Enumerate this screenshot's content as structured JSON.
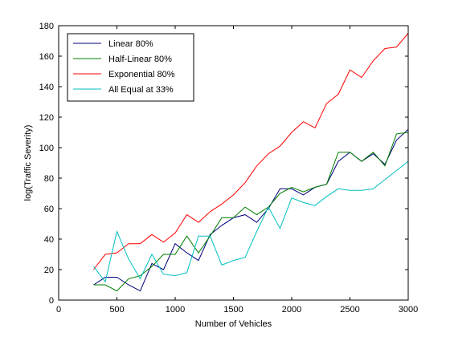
{
  "chart_data": {
    "type": "line",
    "xlabel": "Number of Vehicles",
    "ylabel": "log(Traffic Severity)",
    "xlim": [
      0,
      3000
    ],
    "ylim": [
      0,
      180
    ],
    "xticks": [
      0,
      500,
      1000,
      1500,
      2000,
      2500,
      3000
    ],
    "yticks": [
      0,
      20,
      40,
      60,
      80,
      100,
      120,
      140,
      160,
      180
    ],
    "grid": false,
    "legend_position": "top-left",
    "x": [
      300,
      400,
      500,
      600,
      700,
      800,
      900,
      1000,
      1100,
      1200,
      1300,
      1400,
      1500,
      1600,
      1700,
      1800,
      1900,
      2000,
      2100,
      2200,
      2300,
      2400,
      2500,
      2600,
      2700,
      2800,
      2900,
      3000
    ],
    "series": [
      {
        "name": "Linear 80%",
        "color": "#00007f",
        "values": [
          10,
          15,
          15,
          10,
          6,
          24,
          20,
          37,
          31,
          26,
          43,
          49,
          54,
          56,
          51,
          60,
          73,
          73,
          69,
          74,
          76,
          91,
          97,
          91,
          96,
          89,
          105,
          112
        ]
      },
      {
        "name": "Half-Linear 80%",
        "color": "#007f00",
        "values": [
          10,
          10,
          6,
          14,
          16,
          22,
          30,
          30,
          42,
          31,
          42,
          54,
          54,
          61,
          56,
          61,
          70,
          74,
          71,
          74,
          76,
          97,
          97,
          91,
          97,
          88,
          109,
          110
        ]
      },
      {
        "name": "Exponential 80%",
        "color": "#ff0000",
        "values": [
          20,
          30,
          31,
          37,
          37,
          43,
          38,
          44,
          56,
          51,
          58,
          63,
          69,
          77,
          88,
          96,
          101,
          110,
          117,
          113,
          129,
          135,
          151,
          146,
          157,
          165,
          166,
          175
        ]
      },
      {
        "name": "All Equal at 33%",
        "color": "#00bfbf",
        "values": [
          22,
          12,
          45,
          27,
          14,
          30,
          17,
          16,
          18,
          42,
          42,
          23,
          26,
          28,
          45,
          61,
          47,
          67,
          64,
          62,
          68,
          73,
          72,
          72,
          73,
          79,
          85,
          91
        ]
      }
    ]
  }
}
